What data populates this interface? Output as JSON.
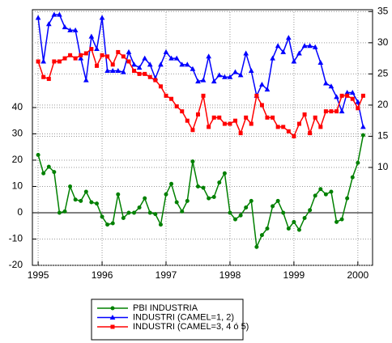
{
  "chart_data": {
    "type": "line",
    "x": [
      1995,
      1995.083,
      1995.167,
      1995.25,
      1995.333,
      1995.417,
      1995.5,
      1995.583,
      1995.667,
      1995.75,
      1995.833,
      1995.917,
      1996,
      1996.083,
      1996.167,
      1996.25,
      1996.333,
      1996.417,
      1996.5,
      1996.583,
      1996.667,
      1996.75,
      1996.833,
      1996.917,
      1997,
      1997.083,
      1997.167,
      1997.25,
      1997.333,
      1997.417,
      1997.5,
      1997.583,
      1997.667,
      1997.75,
      1997.833,
      1997.917,
      1998,
      1998.083,
      1998.167,
      1998.25,
      1998.333,
      1998.417,
      1998.5,
      1998.583,
      1998.667,
      1998.75,
      1998.833,
      1998.917,
      1999,
      1999.083,
      1999.167,
      1999.25,
      1999.333,
      1999.417,
      1999.5,
      1999.583,
      1999.667,
      1999.75,
      1999.833,
      1999.917,
      2000,
      2000.083
    ],
    "series": [
      {
        "name": "PBI INDUSTRIA",
        "color": "#008000",
        "marker": "circle",
        "values": [
          22,
          15,
          17.5,
          15.5,
          0,
          0.5,
          10,
          5,
          4.5,
          8,
          4,
          3.5,
          -1.5,
          -4.5,
          -4,
          7,
          -2,
          0,
          0,
          2,
          5.5,
          0,
          -0.5,
          -4.5,
          7,
          11,
          4,
          0.5,
          4.5,
          19.5,
          10,
          9.5,
          5.5,
          6,
          11.5,
          15,
          0,
          -2.5,
          -1,
          2,
          4.5,
          -13,
          -8.5,
          -6,
          2.5,
          4.5,
          0,
          -6,
          -3.5,
          -6.5,
          -2,
          1,
          6.5,
          9,
          7,
          8,
          -3.5,
          -2.5,
          5.5,
          13.5,
          19,
          29.5
        ]
      },
      {
        "name": "INDUSTRI (CAMEL=1, 2)",
        "color": "#0000ff",
        "marker": "triangle",
        "axis": "y2",
        "values": [
          34,
          27,
          33,
          34.5,
          34.5,
          32.5,
          32,
          32,
          27.5,
          24,
          31,
          29,
          34,
          25.5,
          25.5,
          25.5,
          25.3,
          28.5,
          26.5,
          26,
          27.5,
          26.5,
          24.3,
          26.5,
          28.5,
          27.5,
          27.5,
          26.5,
          26.5,
          25.8,
          23.8,
          24,
          27.8,
          23.8,
          24.8,
          24.5,
          24.5,
          25.3,
          24.8,
          28.3,
          25.5,
          21.5,
          23.3,
          22.5,
          27.5,
          29.5,
          28.5,
          30.8,
          27,
          28.3,
          29.5,
          29.5,
          29.3,
          26.8,
          23.5,
          23,
          21.3,
          19,
          22,
          22,
          20.5,
          16.5
        ]
      },
      {
        "name": "INDUSTRI (CAMEL=3, 4 ó 5)",
        "color": "#ff0000",
        "marker": "square",
        "axis": "y2",
        "values": [
          27,
          24.5,
          24.2,
          27,
          27,
          27.5,
          28,
          27.5,
          28,
          28.3,
          29,
          26.3,
          28,
          27.8,
          26.5,
          28.5,
          27.8,
          27,
          25.5,
          25,
          25,
          24.5,
          24,
          23,
          21.5,
          21,
          19.8,
          19,
          17.5,
          16,
          18.5,
          21.5,
          16.5,
          18,
          18,
          17,
          17,
          17.5,
          15.5,
          18,
          17,
          21.5,
          20,
          18,
          18,
          16.5,
          16.5,
          15.8,
          15,
          17,
          18.5,
          15.5,
          18,
          16.5,
          19,
          19,
          19,
          21.5,
          21.5,
          21,
          19.5,
          21.5
        ]
      }
    ],
    "xlim": [
      1994.91,
      2000.23
    ],
    "xticks": [
      1995,
      1996,
      1997,
      1998,
      1999,
      2000
    ],
    "ylim": [
      -20,
      77.2
    ],
    "yticks": [
      -20,
      -10,
      0,
      10,
      20,
      30,
      40
    ],
    "y2lim": [
      -5.7,
      35.3
    ],
    "y2ticks": [
      10,
      15,
      20,
      25,
      30,
      35
    ],
    "grid": true,
    "zero_line": true,
    "legend": "bottom"
  }
}
